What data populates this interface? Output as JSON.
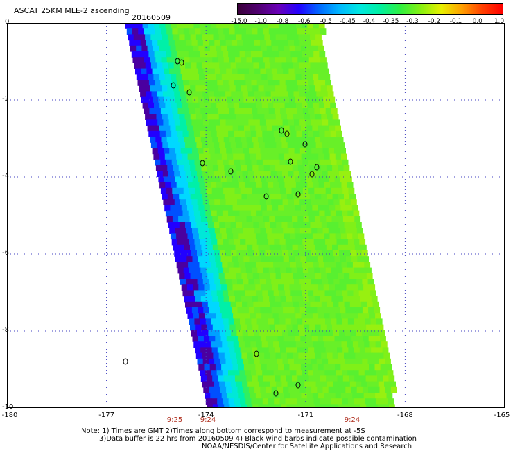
{
  "header": {
    "title": "ASCAT 25KM MLE-2 ascending",
    "date": "20160509"
  },
  "colorbar": {
    "labels": [
      "-15.0",
      "-1.0",
      "-0.8",
      "-0.6",
      "-0.5",
      "-0.45",
      "-0.4",
      "-0.35",
      "-0.3",
      "-0.2",
      "-0.1",
      "0.0",
      "1.0"
    ],
    "colors": [
      "#3a003a",
      "#500070",
      "#6a00b8",
      "#2200ff",
      "#0068ff",
      "#00b8ff",
      "#00e8e0",
      "#00f0a0",
      "#30f040",
      "#88f010",
      "#e8f000",
      "#ffa000",
      "#ff4000",
      "#ff0000"
    ]
  },
  "axes": {
    "y_ticks": [
      "0",
      "-2",
      "-4",
      "-6",
      "-8",
      "-10"
    ],
    "x_ticks": [
      "-180",
      "-177",
      "-174",
      "-171",
      "-168",
      "-165"
    ]
  },
  "times": [
    "9:25",
    "9:24",
    "9:24"
  ],
  "notes": {
    "line1": "Note: 1) Times are GMT 2)Times along bottom correspond to measurement at -5S",
    "line2": "3)Data buffer is 22 hrs from 20160509 4) Black wind barbs indicate possible contamination",
    "line3": "NOAA/NESDIS/Center for Satellite Applications and Research"
  }
}
